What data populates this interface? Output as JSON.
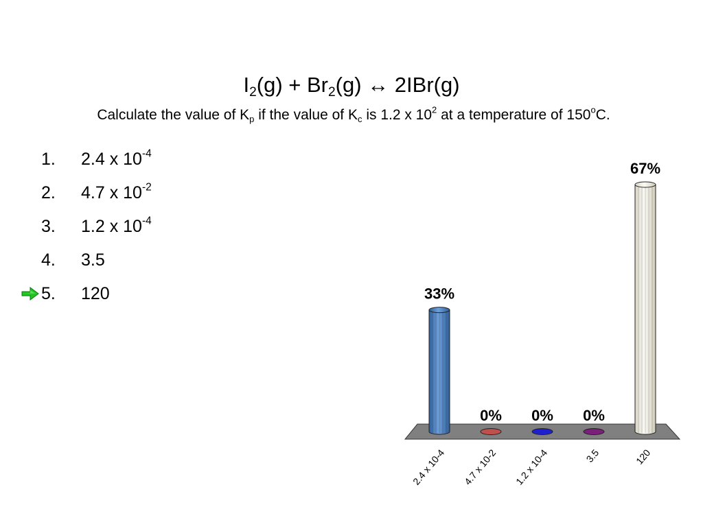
{
  "slide": {
    "title": {
      "part1": "I",
      "sub1": "2",
      "part2": "(g) + Br",
      "sub2": "2",
      "part3": "(g) ↔ 2IBr(g)"
    },
    "question": {
      "part1": "Calculate the value of K",
      "sub1": "p",
      "part2": " if the value of K",
      "sub2": "c",
      "part3": " is 1.2 x 10",
      "sup1": "2",
      "part4": " at a temperature of 150",
      "sup2": "o",
      "part5": "C."
    },
    "answers": [
      {
        "number": "1.",
        "base": "2.4 x 10",
        "exp": "-4"
      },
      {
        "number": "2.",
        "base": "4.7 x 10",
        "exp": "-2"
      },
      {
        "number": "3.",
        "base": "1.2 x 10",
        "exp": "-4"
      },
      {
        "number": "4.",
        "base": "3.5",
        "exp": ""
      },
      {
        "number": "5.",
        "base": "120",
        "exp": ""
      }
    ],
    "correct_answer_icon": "green-arrow-icon",
    "correct_answer_index": 5
  },
  "chart_data": {
    "type": "bar",
    "categories": [
      "2.4 x 10-4",
      "4.7 x 10-2",
      "1.2 x 10-4",
      "3.5",
      "120"
    ],
    "values": [
      33,
      0,
      0,
      0,
      67
    ],
    "labels": [
      "33%",
      "0%",
      "0%",
      "0%",
      "67%"
    ],
    "ylim": [
      0,
      67
    ],
    "colors": [
      "#4f81bd",
      "#c0504d",
      "#1f1fd0",
      "#7a1f7a",
      "#eeece1"
    ],
    "floor_color": "#808080",
    "grid": false,
    "legend": false
  }
}
